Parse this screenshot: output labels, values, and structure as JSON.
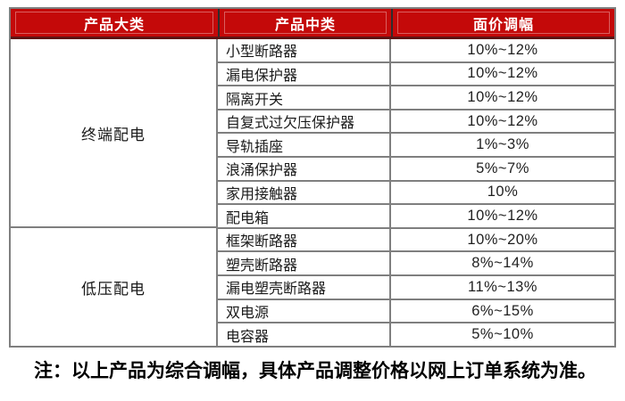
{
  "header": {
    "columns": [
      {
        "label": "产品大类"
      },
      {
        "label": "产品中类"
      },
      {
        "label": "面价调幅"
      }
    ]
  },
  "table": {
    "groups": [
      {
        "category": "终端配电",
        "rows": [
          {
            "name": "小型断路器",
            "adjust": "10%~12%"
          },
          {
            "name": "漏电保护器",
            "adjust": "10%~12%"
          },
          {
            "name": "隔离开关",
            "adjust": "10%~12%"
          },
          {
            "name": "自复式过欠压保护器",
            "adjust": "10%~12%"
          },
          {
            "name": "导轨插座",
            "adjust": "1%~3%"
          },
          {
            "name": "浪涌保护器",
            "adjust": "5%~7%"
          },
          {
            "name": "家用接触器",
            "adjust": "10%"
          },
          {
            "name": "配电箱",
            "adjust": "10%~12%"
          }
        ]
      },
      {
        "category": "低压配电",
        "rows": [
          {
            "name": "框架断路器",
            "adjust": "10%~20%"
          },
          {
            "name": "塑壳断路器",
            "adjust": "8%~14%"
          },
          {
            "name": "漏电塑壳断路器",
            "adjust": "11%~13%"
          },
          {
            "name": "双电源",
            "adjust": "6%~15%"
          },
          {
            "name": "电容器",
            "adjust": "5%~10%"
          }
        ]
      }
    ]
  },
  "note": "注：以上产品为综合调幅，具体产品调整价格以网上订单系统为准。",
  "colors": {
    "header_bg": "#c40909",
    "header_text": "#ffffff",
    "header_inner_frame": "#d95f5f",
    "header_bottom_border": "#5c1414",
    "header_divider": "#2e2e2e",
    "grid": "#7f7f7f",
    "body_text": "#1a1a1a",
    "note_text": "#000000"
  }
}
